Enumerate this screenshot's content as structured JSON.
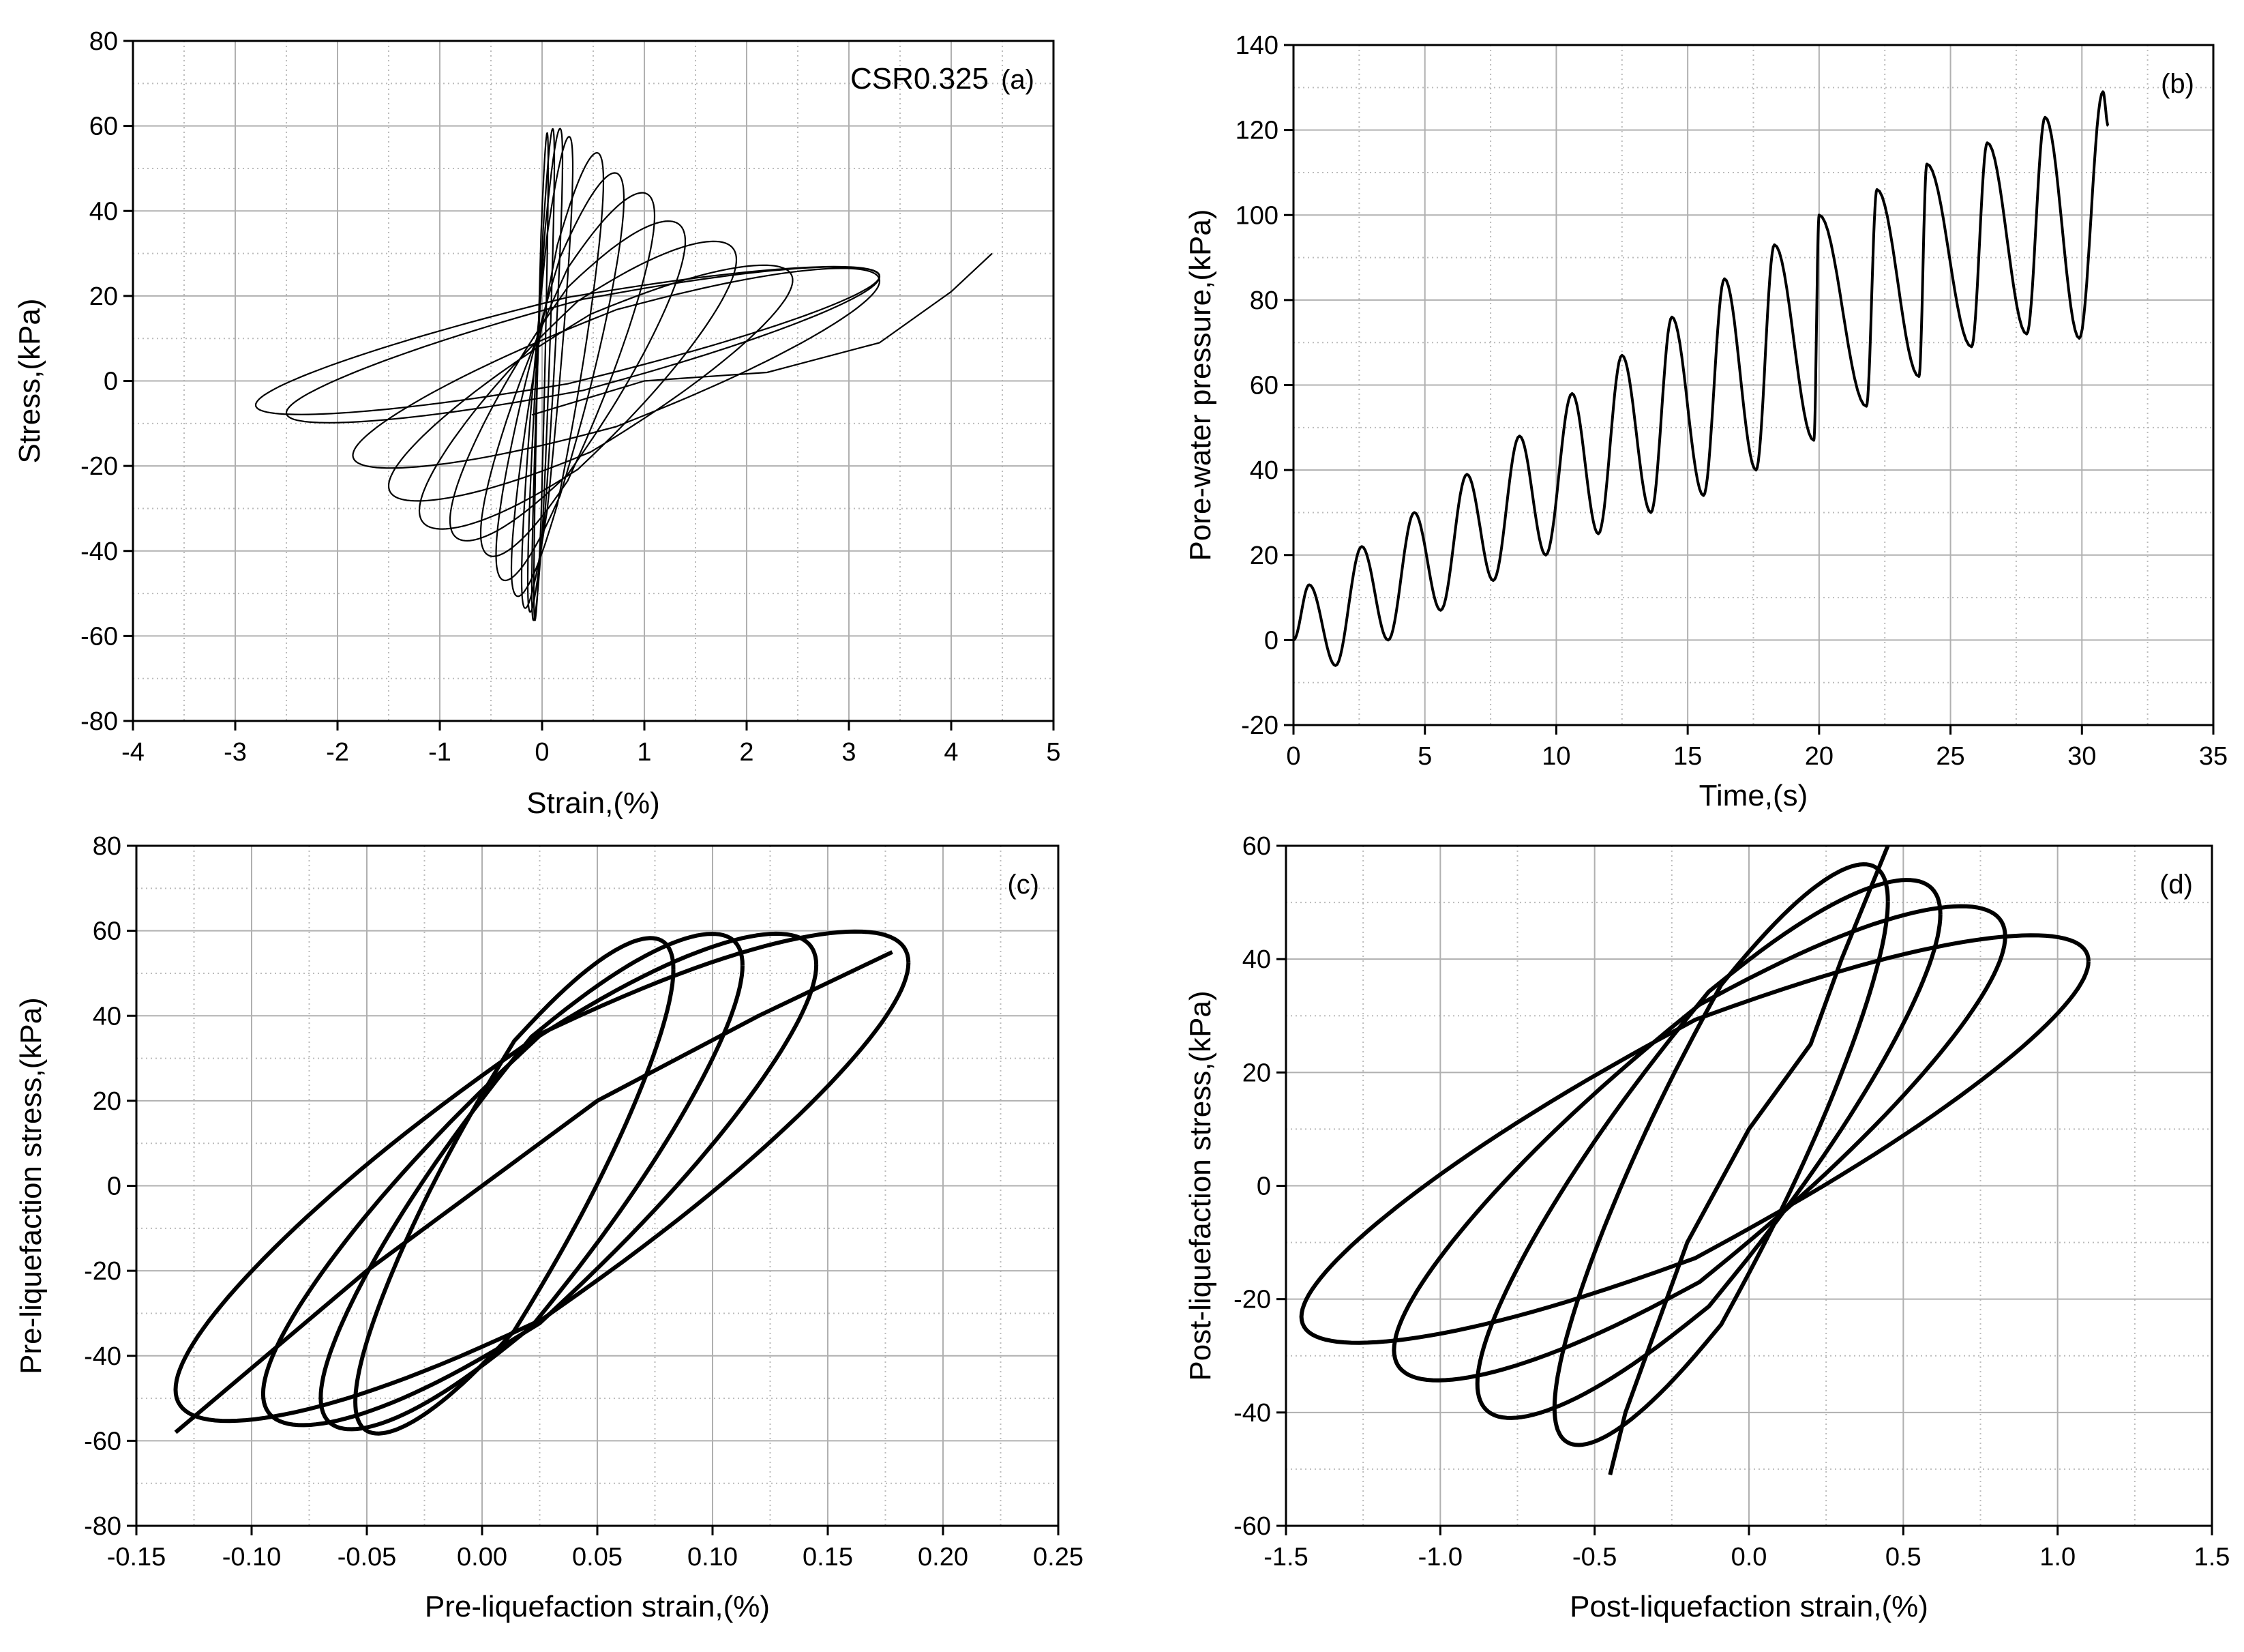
{
  "chart_data": [
    {
      "id": "a",
      "type": "line",
      "panel_label": "(a)",
      "annotation": "CSR0.325",
      "xlabel": "Strain,(%)",
      "ylabel": "Stress,(kPa)",
      "xlim": [
        -4,
        5
      ],
      "ylim": [
        -80,
        80
      ],
      "xticks": [
        -4,
        -3,
        -2,
        -1,
        0,
        1,
        2,
        3,
        4,
        5
      ],
      "yticks": [
        -80,
        -60,
        -40,
        -20,
        0,
        20,
        40,
        60,
        80
      ],
      "grid": true,
      "loops": [
        {
          "xmin": -0.08,
          "xmax": 0.06,
          "ymax": 62,
          "ymin": -60
        },
        {
          "xmin": -0.1,
          "xmax": 0.12,
          "ymax": 63,
          "ymin": -60
        },
        {
          "xmin": -0.14,
          "xmax": 0.2,
          "ymax": 63,
          "ymin": -58
        },
        {
          "xmin": -0.2,
          "xmax": 0.3,
          "ymax": 61,
          "ymin": -57
        },
        {
          "xmin": -0.3,
          "xmax": 0.6,
          "ymax": 57,
          "ymin": -54
        },
        {
          "xmin": -0.45,
          "xmax": 0.8,
          "ymax": 52,
          "ymin": -50
        },
        {
          "xmin": -0.6,
          "xmax": 1.1,
          "ymax": 47,
          "ymin": -44
        },
        {
          "xmin": -0.9,
          "xmax": 1.4,
          "ymax": 40,
          "ymin": -40
        },
        {
          "xmin": -1.2,
          "xmax": 1.9,
          "ymax": 35,
          "ymin": -37
        },
        {
          "xmin": -1.5,
          "xmax": 2.45,
          "ymax": 29,
          "ymin": -30
        },
        {
          "xmin": -1.85,
          "xmax": 3.3,
          "ymax": 28,
          "ymin": -22
        },
        {
          "xmin": -2.5,
          "xmax": 3.3,
          "ymax": 28,
          "ymin": -11
        },
        {
          "xmin": -2.8,
          "xmax": 3.3,
          "ymax": 28,
          "ymin": -9
        }
      ],
      "final_branch": [
        [
          -0.1,
          -8
        ],
        [
          1,
          0
        ],
        [
          2.2,
          2
        ],
        [
          3.3,
          9
        ],
        [
          4.0,
          21
        ],
        [
          4.4,
          30
        ]
      ]
    },
    {
      "id": "b",
      "type": "line",
      "panel_label": "(b)",
      "xlabel": "Time,(s)",
      "ylabel": "Pore-water pressure,(kPa)",
      "xlim": [
        0,
        35
      ],
      "ylim": [
        -20,
        140
      ],
      "xticks": [
        0,
        5,
        10,
        15,
        20,
        25,
        30,
        35
      ],
      "yticks": [
        -20,
        0,
        20,
        40,
        60,
        80,
        100,
        120,
        140
      ],
      "grid": true,
      "series": [
        {
          "peaks": [
            [
              0.6,
              13
            ],
            [
              2.6,
              22
            ],
            [
              4.6,
              30
            ],
            [
              6.6,
              39
            ],
            [
              8.6,
              48
            ],
            [
              10.6,
              58
            ],
            [
              12.5,
              67
            ],
            [
              14.4,
              76
            ],
            [
              16.4,
              85
            ],
            [
              18.3,
              93
            ],
            [
              20.0,
              100
            ],
            [
              22.2,
              106
            ],
            [
              24.1,
              112
            ],
            [
              26.4,
              117
            ],
            [
              28.6,
              123
            ],
            [
              30.8,
              129
            ]
          ],
          "troughs": [
            [
              0,
              0
            ],
            [
              1.6,
              -6
            ],
            [
              3.6,
              0
            ],
            [
              5.6,
              7
            ],
            [
              7.6,
              14
            ],
            [
              9.6,
              20
            ],
            [
              11.6,
              25
            ],
            [
              13.6,
              30
            ],
            [
              15.6,
              34
            ],
            [
              17.6,
              40
            ],
            [
              19.8,
              47
            ],
            [
              21.8,
              55
            ],
            [
              23.8,
              62
            ],
            [
              25.8,
              69
            ],
            [
              27.9,
              72
            ],
            [
              29.9,
              71
            ],
            [
              31.0,
              121
            ]
          ]
        }
      ]
    },
    {
      "id": "c",
      "type": "line",
      "panel_label": "(c)",
      "xlabel": "Pre-liquefaction strain,(%)",
      "ylabel": "Pre-liquefaction stress,(kPa)",
      "xlim": [
        -0.15,
        0.25
      ],
      "ylim": [
        -80,
        80
      ],
      "xticks": [
        -0.15,
        -0.1,
        -0.05,
        0.0,
        0.05,
        0.1,
        0.15,
        0.2,
        0.25
      ],
      "xtick_labels": [
        "-0.15",
        "-0.10",
        "-0.05",
        "0.00",
        "0.05",
        "0.10",
        "0.15",
        "0.20",
        "0.25"
      ],
      "yticks": [
        -80,
        -60,
        -40,
        -20,
        0,
        20,
        40,
        60,
        80
      ],
      "grid": true,
      "loops": [
        {
          "xmin": -0.055,
          "xmax": 0.083,
          "ymax": 62,
          "ymin": -62
        },
        {
          "xmin": -0.07,
          "xmax": 0.113,
          "ymax": 63,
          "ymin": -61
        },
        {
          "xmin": -0.095,
          "xmax": 0.145,
          "ymax": 63,
          "ymin": -60
        },
        {
          "xmin": -0.133,
          "xmax": 0.185,
          "ymax": 63.5,
          "ymin": -59
        }
      ],
      "final_branch": [
        [
          -0.133,
          -58
        ],
        [
          -0.05,
          -20
        ],
        [
          0.05,
          20
        ],
        [
          0.12,
          40
        ],
        [
          0.178,
          55
        ]
      ]
    },
    {
      "id": "d",
      "type": "line",
      "panel_label": "(d)",
      "xlabel": "Post-liquefaction strain,(%)",
      "ylabel": "Post-liquefaction stress,(kPa)",
      "xlim": [
        -1.5,
        1.5
      ],
      "ylim": [
        -60,
        60
      ],
      "xticks": [
        -1.5,
        -1.0,
        -0.5,
        0.0,
        0.5,
        1.0,
        1.5
      ],
      "xtick_labels": [
        "-1.5",
        "-1.0",
        "-0.5",
        "0.0",
        "0.5",
        "1.0",
        "1.5"
      ],
      "yticks": [
        -60,
        -40,
        -20,
        0,
        20,
        40,
        60
      ],
      "grid": true,
      "loops": [
        {
          "xmin": -0.63,
          "xmax": 0.45,
          "ymax": 60,
          "ymin": -49
        },
        {
          "xmin": -0.88,
          "xmax": 0.62,
          "ymax": 57,
          "ymin": -44
        },
        {
          "xmin": -1.15,
          "xmax": 0.83,
          "ymax": 52,
          "ymin": -37
        },
        {
          "xmin": -1.45,
          "xmax": 1.1,
          "ymax": 46.5,
          "ymin": -30
        }
      ],
      "start_branch": [
        [
          -0.45,
          -51
        ],
        [
          -0.4,
          -40
        ],
        [
          -0.2,
          -10
        ],
        [
          0.0,
          10
        ],
        [
          0.2,
          25
        ],
        [
          0.3,
          40
        ],
        [
          0.45,
          60
        ]
      ]
    }
  ]
}
